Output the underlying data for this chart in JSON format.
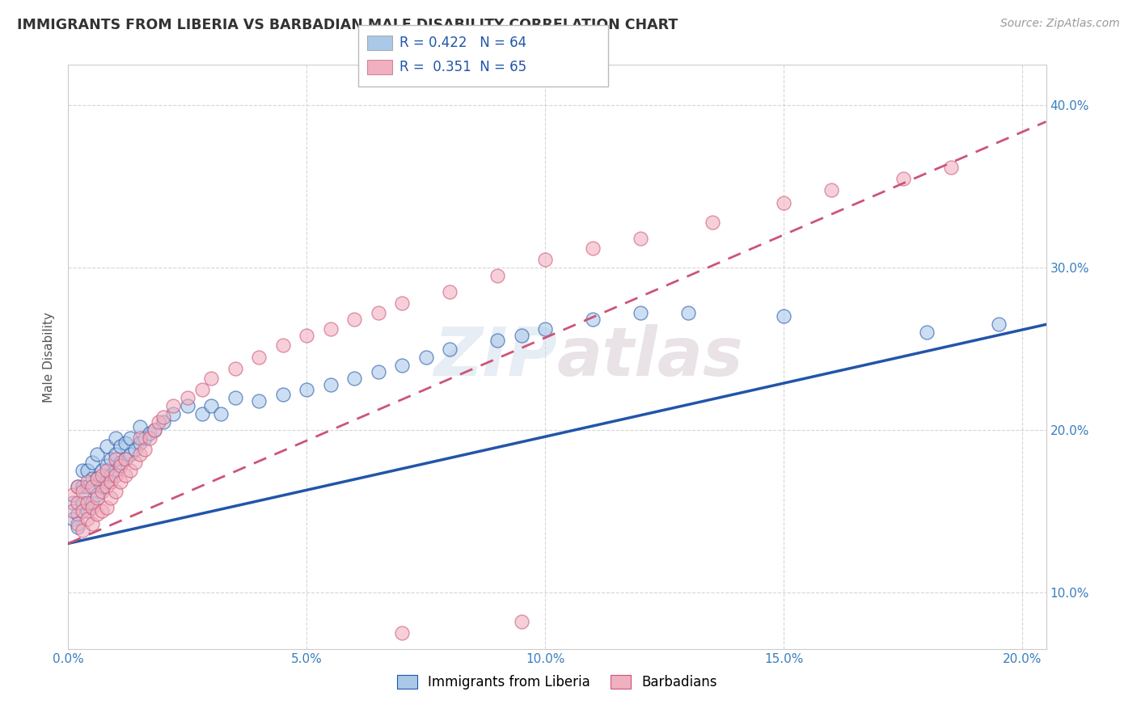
{
  "title": "IMMIGRANTS FROM LIBERIA VS BARBADIAN MALE DISABILITY CORRELATION CHART",
  "source_text": "Source: ZipAtlas.com",
  "ylabel": "Male Disability",
  "xlim": [
    0.0,
    0.205
  ],
  "ylim": [
    0.065,
    0.425
  ],
  "xticks": [
    0.0,
    0.05,
    0.1,
    0.15,
    0.2
  ],
  "xtick_labels": [
    "0.0%",
    "5.0%",
    "10.0%",
    "15.0%",
    "20.0%"
  ],
  "yticks": [
    0.1,
    0.2,
    0.3,
    0.4
  ],
  "ytick_labels": [
    "10.0%",
    "20.0%",
    "30.0%",
    "40.0%"
  ],
  "blue_color": "#aac8e8",
  "pink_color": "#f0b0c0",
  "blue_line_color": "#2255aa",
  "pink_line_color": "#cc5577",
  "legend_label1": "Immigrants from Liberia",
  "legend_label2": "Barbadians",
  "watermark": "ZIPAtlas",
  "background_color": "#ffffff",
  "grid_color": "#cccccc",
  "blue_scatter_x": [
    0.001,
    0.001,
    0.002,
    0.002,
    0.002,
    0.003,
    0.003,
    0.003,
    0.004,
    0.004,
    0.004,
    0.005,
    0.005,
    0.005,
    0.006,
    0.006,
    0.006,
    0.007,
    0.007,
    0.008,
    0.008,
    0.008,
    0.009,
    0.009,
    0.01,
    0.01,
    0.01,
    0.011,
    0.011,
    0.012,
    0.012,
    0.013,
    0.013,
    0.014,
    0.015,
    0.015,
    0.016,
    0.017,
    0.018,
    0.02,
    0.022,
    0.025,
    0.028,
    0.03,
    0.032,
    0.035,
    0.04,
    0.045,
    0.05,
    0.055,
    0.06,
    0.065,
    0.07,
    0.075,
    0.08,
    0.09,
    0.095,
    0.1,
    0.11,
    0.12,
    0.13,
    0.15,
    0.18,
    0.195
  ],
  "blue_scatter_y": [
    0.145,
    0.155,
    0.148,
    0.165,
    0.14,
    0.155,
    0.165,
    0.175,
    0.15,
    0.165,
    0.175,
    0.155,
    0.17,
    0.18,
    0.16,
    0.17,
    0.185,
    0.165,
    0.175,
    0.168,
    0.178,
    0.19,
    0.172,
    0.182,
    0.175,
    0.185,
    0.195,
    0.18,
    0.19,
    0.182,
    0.192,
    0.185,
    0.195,
    0.188,
    0.192,
    0.202,
    0.195,
    0.198,
    0.2,
    0.205,
    0.21,
    0.215,
    0.21,
    0.215,
    0.21,
    0.22,
    0.218,
    0.222,
    0.225,
    0.228,
    0.232,
    0.236,
    0.24,
    0.245,
    0.25,
    0.255,
    0.258,
    0.262,
    0.268,
    0.272,
    0.272,
    0.27,
    0.26,
    0.265
  ],
  "pink_scatter_x": [
    0.001,
    0.001,
    0.002,
    0.002,
    0.002,
    0.003,
    0.003,
    0.003,
    0.004,
    0.004,
    0.004,
    0.005,
    0.005,
    0.005,
    0.006,
    0.006,
    0.006,
    0.007,
    0.007,
    0.007,
    0.008,
    0.008,
    0.008,
    0.009,
    0.009,
    0.01,
    0.01,
    0.01,
    0.011,
    0.011,
    0.012,
    0.012,
    0.013,
    0.014,
    0.015,
    0.015,
    0.016,
    0.017,
    0.018,
    0.019,
    0.02,
    0.022,
    0.025,
    0.028,
    0.03,
    0.035,
    0.04,
    0.045,
    0.05,
    0.055,
    0.06,
    0.065,
    0.07,
    0.08,
    0.09,
    0.1,
    0.11,
    0.12,
    0.135,
    0.15,
    0.16,
    0.175,
    0.185,
    0.095,
    0.07
  ],
  "pink_scatter_y": [
    0.15,
    0.16,
    0.142,
    0.155,
    0.165,
    0.138,
    0.15,
    0.162,
    0.145,
    0.155,
    0.168,
    0.142,
    0.152,
    0.165,
    0.148,
    0.158,
    0.17,
    0.15,
    0.162,
    0.172,
    0.152,
    0.165,
    0.175,
    0.158,
    0.168,
    0.162,
    0.172,
    0.182,
    0.168,
    0.178,
    0.172,
    0.182,
    0.175,
    0.18,
    0.185,
    0.195,
    0.188,
    0.195,
    0.2,
    0.205,
    0.208,
    0.215,
    0.22,
    0.225,
    0.232,
    0.238,
    0.245,
    0.252,
    0.258,
    0.262,
    0.268,
    0.272,
    0.278,
    0.285,
    0.295,
    0.305,
    0.312,
    0.318,
    0.328,
    0.34,
    0.348,
    0.355,
    0.362,
    0.082,
    0.075
  ],
  "blue_line_x0": 0.0,
  "blue_line_y0": 0.13,
  "blue_line_x1": 0.205,
  "blue_line_y1": 0.265,
  "pink_line_x0": 0.0,
  "pink_line_y0": 0.13,
  "pink_line_x1": 0.205,
  "pink_line_y1": 0.39
}
